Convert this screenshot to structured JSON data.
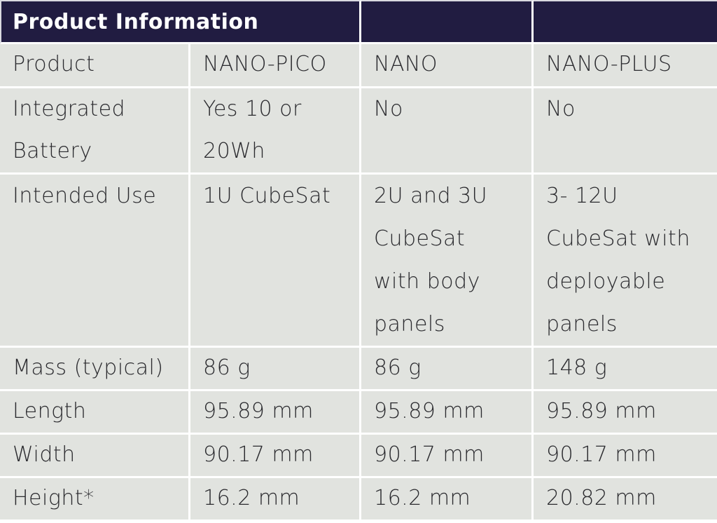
{
  "table": {
    "title": "Product Information",
    "colors": {
      "header_bg": "#211c41",
      "header_text": "#ffffff",
      "cell_bg": "#e1e3df",
      "cell_text": "#2a2a2e",
      "grid": "#ffffff"
    },
    "columns": [
      "Product",
      "NANO-PICO",
      "NANO",
      "NANO-PLUS"
    ],
    "rows": [
      {
        "label": "Integrated\nBattery",
        "values": [
          "Yes 10 or\n20Wh",
          "No",
          "No"
        ]
      },
      {
        "label": "Intended Use",
        "values": [
          "1U CubeSat",
          "2U and 3U\nCubeSat\nwith body\npanels",
          "3- 12U\nCubeSat with\ndeployable\npanels"
        ]
      },
      {
        "label": "Mass (typical)",
        "values": [
          "86 g",
          "86 g",
          "148 g"
        ]
      },
      {
        "label": "Length",
        "values": [
          "95.89 mm",
          "95.89 mm",
          "95.89 mm"
        ]
      },
      {
        "label": "Width",
        "values": [
          "90.17 mm",
          "90.17 mm",
          "90.17 mm"
        ]
      },
      {
        "label": "Height*",
        "values": [
          "16.2 mm",
          "16.2 mm",
          "20.82 mm"
        ]
      }
    ]
  }
}
